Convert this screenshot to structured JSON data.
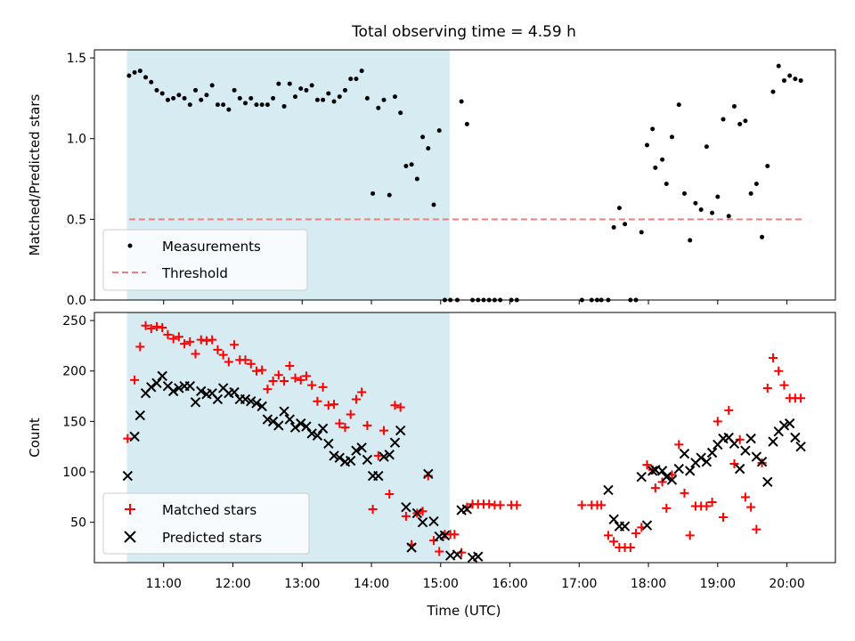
{
  "chart_data": {
    "title": "Total observing time = 4.59 h",
    "xlabel": "Time (UTC)",
    "x_unit": "hours UTC",
    "xlim": [
      10.0,
      20.7
    ],
    "shaded_interval": {
      "x_start": 10.47,
      "x_end": 15.13,
      "color": "#add8e6",
      "alpha": 0.5
    },
    "x_ticks": [
      {
        "value": 11,
        "label": "11:00"
      },
      {
        "value": 12,
        "label": "12:00"
      },
      {
        "value": 13,
        "label": "13:00"
      },
      {
        "value": 14,
        "label": "14:00"
      },
      {
        "value": 15,
        "label": "15:00"
      },
      {
        "value": 16,
        "label": "16:00"
      },
      {
        "value": 17,
        "label": "17:00"
      },
      {
        "value": 18,
        "label": "18:00"
      },
      {
        "value": 19,
        "label": "19:00"
      },
      {
        "value": 20,
        "label": "20:00"
      }
    ],
    "panels": [
      {
        "type": "scatter",
        "ylabel": "Matched/Predicted stars",
        "ylim": [
          0,
          1.55
        ],
        "y_ticks": [
          0.0,
          0.5,
          1.0,
          1.5
        ],
        "y_tick_labels": [
          "0.0",
          "0.5",
          "1.0",
          "1.5"
        ],
        "legend_position": "lower-left",
        "series": [
          {
            "name": "Measurements",
            "marker": "dot",
            "color": "#000000",
            "x": [
              10.5,
              10.58,
              10.66,
              10.74,
              10.82,
              10.9,
              10.98,
              11.06,
              11.14,
              11.22,
              11.3,
              11.38,
              11.46,
              11.54,
              11.62,
              11.7,
              11.78,
              11.86,
              11.94,
              12.02,
              12.1,
              12.18,
              12.26,
              12.34,
              12.42,
              12.5,
              12.58,
              12.66,
              12.74,
              12.82,
              12.9,
              12.98,
              13.06,
              13.14,
              13.22,
              13.3,
              13.38,
              13.46,
              13.54,
              13.62,
              13.7,
              13.78,
              13.86,
              13.94,
              14.02,
              14.1,
              14.18,
              14.26,
              14.34,
              14.42,
              14.5,
              14.58,
              14.66,
              14.74,
              14.82,
              14.9,
              14.98,
              15.06,
              15.14,
              15.24,
              15.3,
              15.38,
              15.46,
              15.54,
              15.62,
              15.7,
              15.78,
              15.86,
              16.02,
              16.1,
              17.04,
              17.18,
              17.26,
              17.32,
              17.42,
              17.5,
              17.58,
              17.66,
              17.74,
              17.82,
              17.9,
              17.98,
              18.06,
              18.1,
              18.2,
              18.26,
              18.34,
              18.44,
              18.52,
              18.6,
              18.68,
              18.76,
              18.84,
              18.92,
              19.0,
              19.08,
              19.16,
              19.24,
              19.32,
              19.4,
              19.48,
              19.56,
              19.64,
              19.72,
              19.8,
              19.88,
              19.96,
              20.04,
              20.12,
              20.2
            ],
            "y": [
              1.39,
              1.41,
              1.42,
              1.38,
              1.35,
              1.3,
              1.28,
              1.24,
              1.25,
              1.27,
              1.25,
              1.21,
              1.3,
              1.24,
              1.27,
              1.33,
              1.21,
              1.21,
              1.18,
              1.3,
              1.25,
              1.22,
              1.25,
              1.21,
              1.21,
              1.21,
              1.25,
              1.34,
              1.2,
              1.34,
              1.26,
              1.31,
              1.3,
              1.33,
              1.24,
              1.24,
              1.28,
              1.23,
              1.26,
              1.3,
              1.37,
              1.37,
              1.42,
              1.25,
              0.66,
              1.19,
              1.24,
              0.65,
              1.26,
              1.16,
              0.83,
              0.84,
              0.75,
              1.01,
              0.94,
              0.59,
              1.05,
              0.0,
              0.0,
              0.0,
              1.23,
              1.09,
              0.0,
              0.0,
              0.0,
              0.0,
              0.0,
              0.0,
              0.0,
              0.0,
              0.0,
              0.0,
              0.0,
              0.0,
              0.0,
              0.45,
              0.57,
              0.47,
              0.0,
              0.0,
              0.42,
              0.96,
              1.06,
              0.82,
              0.87,
              0.72,
              1.01,
              1.21,
              0.66,
              0.37,
              0.6,
              0.56,
              0.95,
              0.54,
              0.64,
              1.12,
              0.52,
              1.2,
              1.09,
              1.11,
              0.66,
              0.72,
              0.39,
              0.83,
              1.29,
              1.45,
              1.36,
              1.39,
              1.37,
              1.36
            ]
          },
          {
            "name": "Threshold",
            "type": "line",
            "style": "dashed",
            "color": "#f08080",
            "x": [
              10.5,
              20.25
            ],
            "y": [
              0.5,
              0.5
            ]
          }
        ]
      },
      {
        "type": "scatter",
        "ylabel": "Count",
        "ylim": [
          10,
          258
        ],
        "y_ticks": [
          50,
          100,
          150,
          200,
          250
        ],
        "y_tick_labels": [
          "50",
          "100",
          "150",
          "200",
          "250"
        ],
        "legend_position": "lower-left",
        "series": [
          {
            "name": "Matched stars",
            "marker": "plus",
            "color": "#ff0000",
            "x": [
              10.48,
              10.58,
              10.66,
              10.74,
              10.82,
              10.9,
              10.98,
              11.06,
              11.14,
              11.22,
              11.3,
              11.38,
              11.46,
              11.54,
              11.62,
              11.7,
              11.78,
              11.86,
              11.94,
              12.02,
              12.1,
              12.18,
              12.26,
              12.34,
              12.42,
              12.5,
              12.58,
              12.66,
              12.74,
              12.82,
              12.9,
              12.98,
              13.06,
              13.14,
              13.22,
              13.3,
              13.38,
              13.46,
              13.54,
              13.62,
              13.7,
              13.78,
              13.86,
              13.94,
              14.02,
              14.1,
              14.18,
              14.26,
              14.34,
              14.42,
              14.5,
              14.58,
              14.66,
              14.74,
              14.82,
              14.9,
              14.98,
              15.06,
              15.14,
              15.2,
              15.3,
              15.38,
              15.46,
              15.54,
              15.62,
              15.7,
              15.78,
              15.86,
              16.02,
              16.1,
              17.04,
              17.18,
              17.26,
              17.32,
              17.42,
              17.5,
              17.58,
              17.66,
              17.74,
              17.82,
              17.9,
              17.98,
              18.06,
              18.1,
              18.2,
              18.26,
              18.34,
              18.44,
              18.52,
              18.6,
              18.68,
              18.76,
              18.84,
              18.92,
              19.0,
              19.08,
              19.16,
              19.24,
              19.32,
              19.4,
              19.48,
              19.56,
              19.64,
              19.72,
              19.8,
              19.88,
              19.96,
              20.04,
              20.12,
              20.2
            ],
            "y": [
              133,
              191,
              224,
              245,
              242,
              244,
              243,
              236,
              232,
              234,
              227,
              229,
              217,
              231,
              230,
              231,
              221,
              216,
              209,
              226,
              211,
              211,
              207,
              200,
              201,
              182,
              190,
              196,
              190,
              205,
              193,
              191,
              195,
              186,
              170,
              184,
              166,
              167,
              148,
              144,
              157,
              172,
              179,
              146,
              63,
              116,
              141,
              78,
              166,
              164,
              56,
              28,
              59,
              61,
              96,
              32,
              21,
              38,
              38,
              38,
              20,
              65,
              68,
              68,
              68,
              68,
              67,
              67,
              67,
              67,
              67,
              67,
              67,
              67,
              37,
              31,
              25,
              25,
              25,
              39,
              45,
              107,
              102,
              84,
              90,
              64,
              97,
              127,
              79,
              37,
              66,
              66,
              66,
              70,
              150,
              55,
              161,
              108,
              132,
              75,
              65,
              43,
              109,
              183,
              213,
              200,
              186,
              173,
              173,
              173
            ]
          },
          {
            "name": "Predicted stars",
            "marker": "x",
            "color": "#000000",
            "x": [
              10.48,
              10.58,
              10.66,
              10.74,
              10.82,
              10.9,
              10.98,
              11.06,
              11.14,
              11.22,
              11.3,
              11.38,
              11.46,
              11.54,
              11.62,
              11.7,
              11.78,
              11.86,
              11.94,
              12.02,
              12.1,
              12.18,
              12.26,
              12.34,
              12.42,
              12.5,
              12.58,
              12.66,
              12.74,
              12.82,
              12.9,
              12.98,
              13.06,
              13.14,
              13.22,
              13.3,
              13.38,
              13.46,
              13.54,
              13.62,
              13.7,
              13.78,
              13.86,
              13.94,
              14.02,
              14.1,
              14.18,
              14.26,
              14.34,
              14.42,
              14.5,
              14.58,
              14.66,
              14.74,
              14.82,
              14.9,
              14.98,
              15.06,
              15.14,
              15.24,
              15.3,
              15.38,
              15.46,
              15.54,
              17.42,
              17.5,
              17.58,
              17.66,
              17.9,
              17.98,
              18.06,
              18.1,
              18.2,
              18.26,
              18.34,
              18.44,
              18.52,
              18.6,
              18.68,
              18.76,
              18.84,
              18.92,
              19.0,
              19.08,
              19.16,
              19.24,
              19.32,
              19.4,
              19.48,
              19.56,
              19.64,
              19.72,
              19.8,
              19.88,
              19.96,
              20.04,
              20.12,
              20.2
            ],
            "y": [
              96,
              135,
              156,
              178,
              184,
              188,
              195,
              185,
              180,
              183,
              185,
              185,
              169,
              180,
              177,
              178,
              172,
              183,
              178,
              179,
              172,
              172,
              170,
              168,
              165,
              152,
              150,
              146,
              160,
              152,
              144,
              148,
              145,
              138,
              136,
              143,
              128,
              116,
              114,
              110,
              111,
              121,
              124,
              112,
              96,
              96,
              115,
              117,
              129,
              141,
              65,
              25,
              59,
              50,
              98,
              51,
              36,
              37,
              17,
              18,
              62,
              63,
              15,
              16,
              82,
              53,
              46,
              46,
              95,
              47,
              101,
              102,
              101,
              95,
              92,
              103,
              118,
              101,
              109,
              114,
              110,
              119,
              127,
              133,
              134,
              128,
              103,
              121,
              133,
              115,
              110,
              90,
              130,
              140,
              146,
              148,
              134,
              125
            ]
          }
        ]
      }
    ]
  }
}
